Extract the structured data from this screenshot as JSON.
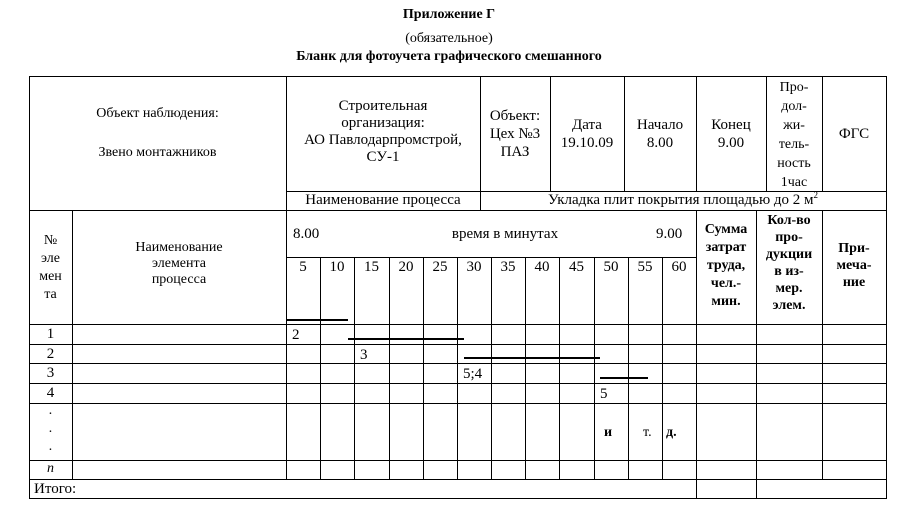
{
  "header": {
    "appendix": "Приложение Г",
    "note": "(обязательное)",
    "title": "Бланк для фотоучета графического смешанного"
  },
  "info": {
    "observation_object_label": "Объект наблюдения:",
    "observation_object_value": "Звено монтажников",
    "org_lines": [
      "Строительная",
      "организация:",
      "АО Павлодарпромстрой,",
      "СУ-1"
    ],
    "object_lines": [
      "Объект:",
      "Цех №3",
      "ПАЗ"
    ],
    "date_lines": [
      "Дата",
      "19.10.09"
    ],
    "start_lines": [
      "Начало",
      "8.00"
    ],
    "end_lines": [
      "Конец",
      "9.00"
    ],
    "duration_lines": [
      "Про-",
      "дол-",
      "жи-",
      "тель-",
      "ность",
      "1час"
    ],
    "fgs": "ФГС",
    "process_label": "Наименование процесса",
    "process_value": "Укладка плит покрытия площадью до 2 м",
    "process_value_sup": "2"
  },
  "columns": {
    "num_lines": [
      "№",
      "эле",
      "мен",
      "та"
    ],
    "name_lines": [
      "Наименование",
      "элемента",
      "процесса"
    ],
    "time_start": "8.00",
    "time_label": "время в минутах",
    "time_end": "9.00",
    "minutes": [
      "5",
      "10",
      "15",
      "20",
      "25",
      "30",
      "35",
      "40",
      "45",
      "50",
      "55",
      "60"
    ],
    "labor_lines": [
      "Сумма",
      "затрат",
      "труда,",
      "чел.-",
      "мин."
    ],
    "qty_lines": [
      "Кол-во",
      "про-",
      "дукции",
      "в из-",
      "мер.",
      "элем."
    ],
    "note_lines": [
      "При-",
      "меча-",
      "ние"
    ]
  },
  "rows": [
    {
      "num": "1",
      "mark": "2",
      "mark_col": 0
    },
    {
      "num": "2",
      "mark": "3",
      "mark_col": 2
    },
    {
      "num": "3",
      "mark": "5;4",
      "mark_col": 5
    },
    {
      "num": "4",
      "mark": "5",
      "mark_col": 9
    }
  ],
  "dots_row": {
    "dots": [
      "·",
      "·",
      "·"
    ],
    "etc": [
      "и",
      "т.",
      "д."
    ]
  },
  "last_row": {
    "num": "n"
  },
  "total_label": "Итого:",
  "gantt_bars_minutes": [
    [
      0,
      9
    ],
    [
      9,
      26
    ],
    [
      26,
      46
    ],
    [
      46,
      53
    ]
  ]
}
